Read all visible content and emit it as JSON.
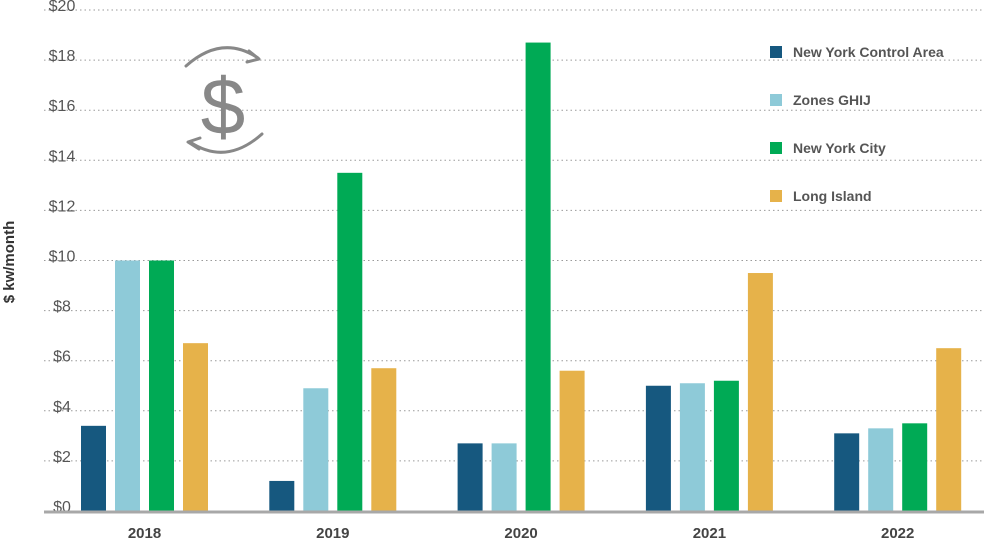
{
  "chart_data": {
    "type": "bar",
    "categories": [
      "2018",
      "2019",
      "2020",
      "2021",
      "2022"
    ],
    "series": [
      {
        "name": "New York Control Area",
        "color": "#16587f",
        "values": [
          3.4,
          1.2,
          2.7,
          5.0,
          3.1
        ]
      },
      {
        "name": "Zones GHIJ",
        "color": "#8ecad8",
        "values": [
          10.0,
          4.9,
          2.7,
          5.1,
          3.3
        ]
      },
      {
        "name": "New York City",
        "color": "#00aa55",
        "values": [
          10.0,
          13.5,
          18.7,
          5.2,
          3.5
        ]
      },
      {
        "name": "Long Island",
        "color": "#e6b24a",
        "values": [
          6.7,
          5.7,
          5.6,
          9.5,
          6.5
        ]
      }
    ],
    "yticks": [
      {
        "value": 0,
        "label": "$0"
      },
      {
        "value": 2,
        "label": "$2"
      },
      {
        "value": 4,
        "label": "$4"
      },
      {
        "value": 6,
        "label": "$6"
      },
      {
        "value": 8,
        "label": "$8"
      },
      {
        "value": 10,
        "label": "$10"
      },
      {
        "value": 12,
        "label": "$12"
      },
      {
        "value": 14,
        "label": "$14"
      },
      {
        "value": 16,
        "label": "$16"
      },
      {
        "value": 18,
        "label": "$18"
      },
      {
        "value": 20,
        "label": "$20"
      }
    ],
    "ylabel": "$ kw/month",
    "ylim": [
      0,
      20
    ],
    "grid": true,
    "legend": "top-right",
    "icon": "dollar-cycle-icon",
    "icon_glyph": "$",
    "icon_color": "#888888"
  }
}
